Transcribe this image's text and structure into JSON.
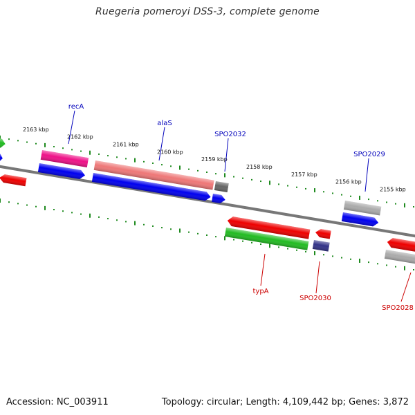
{
  "title": "Ruegeria pomeroyi DSS-3, complete genome",
  "footer": {
    "accession": "Accession: NC_003911",
    "summary": "Topology: circular; Length: 4,109,442 bp; Genes: 3,872"
  },
  "colors": {
    "backbone": "#777777",
    "tick": "#1e8a1e",
    "label_forward": "#0000bb",
    "label_reverse": "#cc0000",
    "scale_text": "#111111"
  },
  "scale_labels": [
    "2163 kbp",
    "2162 kbp",
    "2161 kbp",
    "2160 kbp",
    "2159 kbp",
    "2158 kbp",
    "2157 kbp",
    "2156 kbp",
    "2155 kbp"
  ],
  "gene_labels": {
    "recA": "recA",
    "alaS": "alaS",
    "SPO2032": "SPO2032",
    "SPO2029": "SPO2029",
    "typA": "typA",
    "SPO2030": "SPO2030",
    "SPO2028": "SPO2028"
  },
  "feature_colors": {
    "green": "#22bb22",
    "blue": "#0000ee",
    "red": "#ee0000",
    "magenta": "#ee1188",
    "salmon": "#ee7777",
    "dark_gray": "#666666",
    "light_gray": "#aaaaaa",
    "navy": "#333388"
  }
}
